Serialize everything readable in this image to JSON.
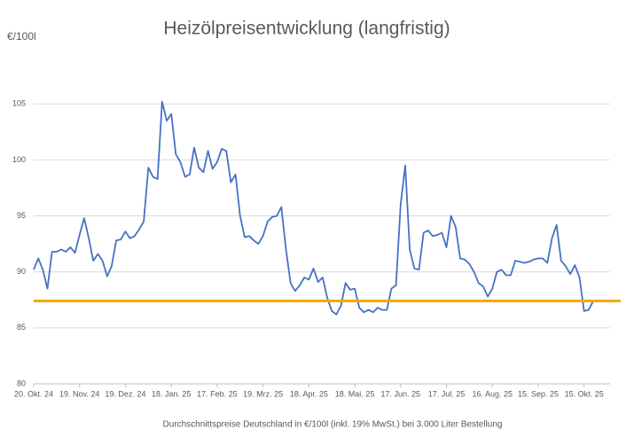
{
  "chart_data": {
    "type": "line",
    "title": "Heizölpreisentwicklung (langfristig)",
    "y_label": "€/100l",
    "caption": "Durchschnittspreise Deutschland in €/100l (inkl. 19% MwSt.) bei 3.000 Liter Bestellung",
    "x": [
      "2024-10-20",
      "2024-10-23",
      "2024-10-26",
      "2024-10-29",
      "2024-11-01",
      "2024-11-04",
      "2024-11-07",
      "2024-11-10",
      "2024-11-13",
      "2024-11-16",
      "2024-11-19",
      "2024-11-22",
      "2024-11-25",
      "2024-11-28",
      "2024-12-01",
      "2024-12-04",
      "2024-12-07",
      "2024-12-10",
      "2024-12-13",
      "2024-12-16",
      "2024-12-19",
      "2024-12-22",
      "2024-12-25",
      "2024-12-28",
      "2024-12-31",
      "2025-01-03",
      "2025-01-06",
      "2025-01-09",
      "2025-01-12",
      "2025-01-15",
      "2025-01-18",
      "2025-01-21",
      "2025-01-24",
      "2025-01-27",
      "2025-01-30",
      "2025-02-02",
      "2025-02-05",
      "2025-02-08",
      "2025-02-11",
      "2025-02-14",
      "2025-02-17",
      "2025-02-20",
      "2025-02-23",
      "2025-02-26",
      "2025-03-01",
      "2025-03-04",
      "2025-03-07",
      "2025-03-10",
      "2025-03-13",
      "2025-03-16",
      "2025-03-19",
      "2025-03-22",
      "2025-03-25",
      "2025-03-28",
      "2025-03-31",
      "2025-04-03",
      "2025-04-06",
      "2025-04-09",
      "2025-04-12",
      "2025-04-15",
      "2025-04-18",
      "2025-04-21",
      "2025-04-24",
      "2025-04-27",
      "2025-04-30",
      "2025-05-03",
      "2025-05-06",
      "2025-05-09",
      "2025-05-12",
      "2025-05-15",
      "2025-05-18",
      "2025-05-21",
      "2025-05-24",
      "2025-05-27",
      "2025-05-30",
      "2025-06-02",
      "2025-06-05",
      "2025-06-08",
      "2025-06-11",
      "2025-06-14",
      "2025-06-17",
      "2025-06-20",
      "2025-06-23",
      "2025-06-26",
      "2025-06-29",
      "2025-07-02",
      "2025-07-05",
      "2025-07-08",
      "2025-07-11",
      "2025-07-14",
      "2025-07-17",
      "2025-07-20",
      "2025-07-23",
      "2025-07-26",
      "2025-07-29",
      "2025-08-01",
      "2025-08-04",
      "2025-08-07",
      "2025-08-10",
      "2025-08-13",
      "2025-08-16",
      "2025-08-19",
      "2025-08-22",
      "2025-08-25",
      "2025-08-28",
      "2025-08-31",
      "2025-09-03",
      "2025-09-06",
      "2025-09-09",
      "2025-09-12",
      "2025-09-15",
      "2025-09-18",
      "2025-09-21",
      "2025-09-24",
      "2025-09-27",
      "2025-09-30",
      "2025-10-03",
      "2025-10-06",
      "2025-10-09",
      "2025-10-12",
      "2025-10-15",
      "2025-10-18",
      "2025-10-21"
    ],
    "series": [
      {
        "color": "#4472c4",
        "values": [
          90.2,
          91.2,
          90.2,
          88.5,
          91.8,
          91.8,
          92,
          91.8,
          92.2,
          91.7,
          93.3,
          94.8,
          93,
          91,
          91.6,
          91,
          89.6,
          90.5,
          92.8,
          92.9,
          93.6,
          93,
          93.2,
          93.8,
          94.5,
          99.3,
          98.5,
          98.3,
          105.2,
          103.5,
          104.1,
          100.5,
          99.8,
          98.5,
          98.7,
          101.1,
          99.3,
          98.9,
          100.8,
          99.2,
          99.8,
          101,
          100.8,
          98,
          98.7,
          95,
          93.1,
          93.2,
          92.8,
          92.5,
          93.2,
          94.5,
          94.9,
          95,
          95.8,
          92,
          89,
          88.3,
          88.8,
          89.5,
          89.3,
          90.3,
          89.1,
          89.5,
          87.7,
          86.5,
          86.2,
          87,
          89,
          88.4,
          88.5,
          86.8,
          86.4,
          86.6,
          86.4,
          86.8,
          86.6,
          86.6,
          88.5,
          88.8,
          96,
          99.5,
          92,
          90.3,
          90.2,
          93.5,
          93.7,
          93.2,
          93.3,
          93.5,
          92.2,
          95,
          94,
          91.2,
          91.1,
          90.7,
          90,
          89,
          88.7,
          87.8,
          88.5,
          90,
          90.2,
          89.7,
          89.7,
          91,
          90.9,
          90.8,
          90.9,
          91.1,
          91.2,
          91.2,
          90.8,
          93,
          94.2,
          91,
          90.5,
          89.8,
          90.6,
          89.5,
          86.5,
          86.6,
          87.4
        ]
      }
    ],
    "reference_line": {
      "value": 87.4,
      "color": "#f5a800"
    },
    "xlim": [
      "2024-10-20",
      "2025-11-01"
    ],
    "xticks": [
      {
        "value": "2024-10-20",
        "label": "20. Okt. 24"
      },
      {
        "value": "2024-11-19",
        "label": "19. Nov. 24"
      },
      {
        "value": "2024-12-19",
        "label": "19. Dez. 24"
      },
      {
        "value": "2025-01-18",
        "label": "18. Jan. 25"
      },
      {
        "value": "2025-02-17",
        "label": "17. Feb. 25"
      },
      {
        "value": "2025-03-19",
        "label": "19. Mrz. 25"
      },
      {
        "value": "2025-04-18",
        "label": "18. Apr. 25"
      },
      {
        "value": "2025-05-18",
        "label": "18. Mai. 25"
      },
      {
        "value": "2025-06-17",
        "label": "17. Jun. 25"
      },
      {
        "value": "2025-07-17",
        "label": "17. Jul. 25"
      },
      {
        "value": "2025-08-16",
        "label": "16. Aug. 25"
      },
      {
        "value": "2025-09-15",
        "label": "15. Sep. 25"
      },
      {
        "value": "2025-10-15",
        "label": "15. Okt. 25"
      }
    ],
    "ylim": [
      80,
      107
    ],
    "yticks": [
      80,
      85,
      90,
      95,
      100,
      105
    ],
    "grid": true
  }
}
